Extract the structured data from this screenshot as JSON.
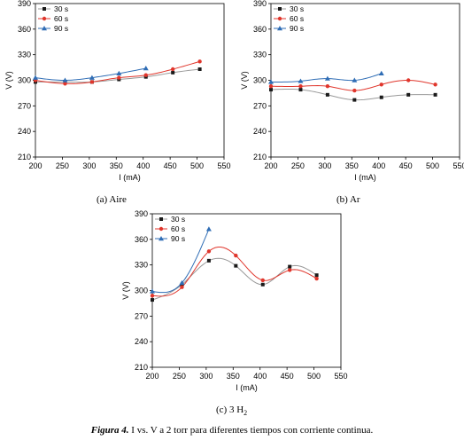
{
  "figure": {
    "caption_label": "Figura 4.",
    "caption_text": "I vs. V a 2 torr para diferentes tiempos con corriente continua."
  },
  "colors": {
    "s30": "#1a1a1a",
    "s60": "#e0362c",
    "s90": "#2f6db5",
    "fit30": "#999999"
  },
  "chart_data": [
    {
      "type": "line",
      "caption": "(a)  Aire",
      "xlabel": "I (mA)",
      "ylabel": "V (V)",
      "xlim": [
        200,
        550
      ],
      "ylim": [
        210,
        390
      ],
      "xticks": [
        200,
        250,
        300,
        350,
        400,
        450,
        500,
        550
      ],
      "yticks": [
        210,
        240,
        270,
        300,
        330,
        360,
        390
      ],
      "legend_position": "top-left",
      "grid": false,
      "series": [
        {
          "name": "30 s",
          "marker": "square",
          "x": [
            200,
            255,
            305,
            355,
            405,
            455,
            505
          ],
          "y": [
            298,
            298,
            298,
            301,
            304,
            309,
            313
          ]
        },
        {
          "name": "60 s",
          "marker": "circle",
          "x": [
            200,
            255,
            305,
            355,
            405,
            455,
            505
          ],
          "y": [
            300,
            296,
            298,
            303,
            306,
            313,
            322
          ]
        },
        {
          "name": "90 s",
          "marker": "triangle",
          "x": [
            200,
            255,
            305,
            355,
            405
          ],
          "y": [
            303,
            300,
            303,
            308,
            314
          ]
        }
      ]
    },
    {
      "type": "line",
      "caption": "(b)  Ar",
      "xlabel": "I (mA)",
      "ylabel": "V (V)",
      "xlim": [
        200,
        550
      ],
      "ylim": [
        210,
        390
      ],
      "xticks": [
        200,
        250,
        300,
        350,
        400,
        450,
        500,
        550
      ],
      "yticks": [
        210,
        240,
        270,
        300,
        330,
        360,
        390
      ],
      "legend_position": "top-left",
      "grid": false,
      "series": [
        {
          "name": "30 s",
          "marker": "square",
          "x": [
            200,
            255,
            305,
            355,
            405,
            455,
            505
          ],
          "y": [
            289,
            289,
            283,
            277,
            280,
            283,
            283
          ]
        },
        {
          "name": "60 s",
          "marker": "circle",
          "x": [
            200,
            255,
            305,
            355,
            405,
            455,
            505
          ],
          "y": [
            293,
            293,
            293,
            288,
            295,
            300,
            295
          ]
        },
        {
          "name": "90 s",
          "marker": "triangle",
          "x": [
            200,
            255,
            305,
            355,
            405
          ],
          "y": [
            298,
            299,
            302,
            300,
            308
          ]
        }
      ]
    },
    {
      "type": "line",
      "caption_prefix": "(c)  3 H",
      "caption_sub": "2",
      "xlabel": "I (mA)",
      "ylabel": "V (V)",
      "xlim": [
        200,
        550
      ],
      "ylim": [
        210,
        390
      ],
      "xticks": [
        200,
        250,
        300,
        350,
        400,
        450,
        500,
        550
      ],
      "yticks": [
        210,
        240,
        270,
        300,
        330,
        360,
        390
      ],
      "legend_position": "top-left",
      "grid": false,
      "series": [
        {
          "name": "30 s",
          "marker": "square",
          "x": [
            200,
            255,
            305,
            355,
            405,
            455,
            505
          ],
          "y": [
            289,
            307,
            335,
            329,
            307,
            328,
            318
          ]
        },
        {
          "name": "60 s",
          "marker": "circle",
          "x": [
            200,
            255,
            305,
            355,
            405,
            455,
            505
          ],
          "y": [
            294,
            304,
            346,
            341,
            312,
            324,
            314
          ]
        },
        {
          "name": "90 s",
          "marker": "triangle",
          "x": [
            200,
            255,
            305
          ],
          "y": [
            299,
            309,
            372
          ]
        }
      ]
    }
  ]
}
